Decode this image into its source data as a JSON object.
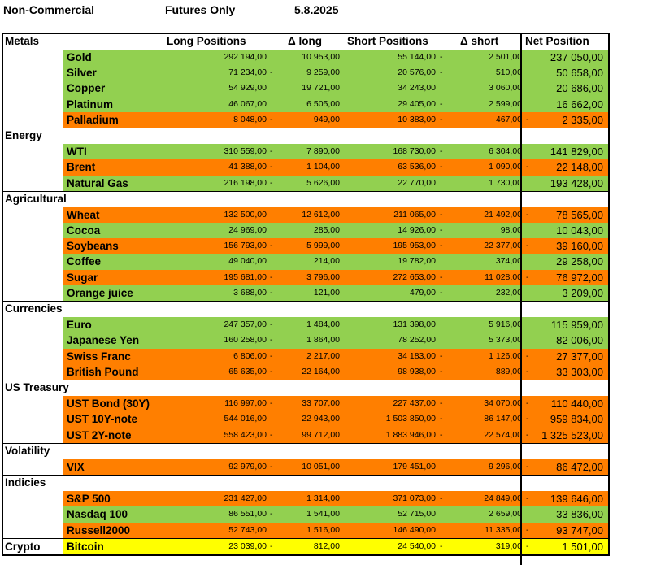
{
  "header": {
    "title": "Non-Commercial",
    "subtitle": "Futures Only",
    "date": "5.8.2025"
  },
  "columns": {
    "long": "Long Positions",
    "dlong": "Δ long",
    "short": "Short Positions",
    "dshort": "Δ short",
    "net": "Net Position"
  },
  "sections": [
    {
      "name": "Metals",
      "rows": [
        {
          "name": "Gold",
          "color": "#92d050",
          "long": "292 194,00",
          "dlong": "10 953,00",
          "dlong_neg": "",
          "short": "55 144,00",
          "dshort": "2 501,00",
          "dshort_neg": "-",
          "net": "237 050,00",
          "net_neg": ""
        },
        {
          "name": "Silver",
          "color": "#92d050",
          "long": "71 234,00",
          "dlong": "9 259,00",
          "dlong_neg": "-",
          "short": "20 576,00",
          "dshort": "510,00",
          "dshort_neg": "-",
          "net": "50 658,00",
          "net_neg": ""
        },
        {
          "name": "Copper",
          "color": "#92d050",
          "long": "54 929,00",
          "dlong": "19 721,00",
          "dlong_neg": "",
          "short": "34 243,00",
          "dshort": "3 060,00",
          "dshort_neg": "",
          "net": "20 686,00",
          "net_neg": ""
        },
        {
          "name": "Platinum",
          "color": "#92d050",
          "long": "46 067,00",
          "dlong": "6 505,00",
          "dlong_neg": "",
          "short": "29 405,00",
          "dshort": "2 599,00",
          "dshort_neg": "-",
          "net": "16 662,00",
          "net_neg": ""
        },
        {
          "name": "Palladium",
          "color": "#ff7f00",
          "long": "8 048,00",
          "dlong": "949,00",
          "dlong_neg": "-",
          "short": "10 383,00",
          "dshort": "467,00",
          "dshort_neg": "-",
          "net": "2 335,00",
          "net_neg": "-"
        }
      ]
    },
    {
      "name": "Energy",
      "rows": [
        {
          "name": "WTI",
          "color": "#92d050",
          "long": "310 559,00",
          "dlong": "7 890,00",
          "dlong_neg": "-",
          "short": "168 730,00",
          "dshort": "6 304,00",
          "dshort_neg": "-",
          "net": "141 829,00",
          "net_neg": ""
        },
        {
          "name": "Brent",
          "color": "#ff7f00",
          "long": "41 388,00",
          "dlong": "1 104,00",
          "dlong_neg": "-",
          "short": "63 536,00",
          "dshort": "1 090,00",
          "dshort_neg": "-",
          "net": "22 148,00",
          "net_neg": "-"
        },
        {
          "name": "Natural Gas",
          "color": "#92d050",
          "long": "216 198,00",
          "dlong": "5 626,00",
          "dlong_neg": "-",
          "short": "22 770,00",
          "dshort": "1 730,00",
          "dshort_neg": "",
          "net": "193 428,00",
          "net_neg": ""
        }
      ]
    },
    {
      "name": "Agricultural",
      "rows": [
        {
          "name": "Wheat",
          "color": "#ff7f00",
          "long": "132 500,00",
          "dlong": "12 612,00",
          "dlong_neg": "",
          "short": "211 065,00",
          "dshort": "21 492,00",
          "dshort_neg": "-",
          "net": "78 565,00",
          "net_neg": "-"
        },
        {
          "name": "Cocoa",
          "color": "#92d050",
          "long": "24 969,00",
          "dlong": "285,00",
          "dlong_neg": "",
          "short": "14 926,00",
          "dshort": "98,00",
          "dshort_neg": "-",
          "net": "10 043,00",
          "net_neg": ""
        },
        {
          "name": "Soybeans",
          "color": "#ff7f00",
          "long": "156 793,00",
          "dlong": "5 999,00",
          "dlong_neg": "-",
          "short": "195 953,00",
          "dshort": "22 377,00",
          "dshort_neg": "-",
          "net": "39 160,00",
          "net_neg": "-"
        },
        {
          "name": "Coffee",
          "color": "#92d050",
          "long": "49 040,00",
          "dlong": "214,00",
          "dlong_neg": "",
          "short": "19 782,00",
          "dshort": "374,00",
          "dshort_neg": "",
          "net": "29 258,00",
          "net_neg": ""
        },
        {
          "name": "Sugar",
          "color": "#ff7f00",
          "long": "195 681,00",
          "dlong": "3 796,00",
          "dlong_neg": "-",
          "short": "272 653,00",
          "dshort": "11 028,00",
          "dshort_neg": "-",
          "net": "76 972,00",
          "net_neg": "-"
        },
        {
          "name": "Orange juice",
          "color": "#92d050",
          "long": "3 688,00",
          "dlong": "121,00",
          "dlong_neg": "-",
          "short": "479,00",
          "dshort": "232,00",
          "dshort_neg": "-",
          "net": "3 209,00",
          "net_neg": ""
        }
      ]
    },
    {
      "name": "Currencies",
      "rows": [
        {
          "name": "Euro",
          "color": "#92d050",
          "long": "247 357,00",
          "dlong": "1 484,00",
          "dlong_neg": "-",
          "short": "131 398,00",
          "dshort": "5 916,00",
          "dshort_neg": "",
          "net": "115 959,00",
          "net_neg": ""
        },
        {
          "name": "Japanese Yen",
          "color": "#92d050",
          "long": "160 258,00",
          "dlong": "1 864,00",
          "dlong_neg": "-",
          "short": "78 252,00",
          "dshort": "5 373,00",
          "dshort_neg": "",
          "net": "82 006,00",
          "net_neg": ""
        },
        {
          "name": "Swiss Franc",
          "color": "#ff7f00",
          "long": "6 806,00",
          "dlong": "2 217,00",
          "dlong_neg": "-",
          "short": "34 183,00",
          "dshort": "1 126,00",
          "dshort_neg": "-",
          "net": "27 377,00",
          "net_neg": "-"
        },
        {
          "name": "British Pound",
          "color": "#ff7f00",
          "long": "65 635,00",
          "dlong": "22 164,00",
          "dlong_neg": "-",
          "short": "98 938,00",
          "dshort": "889,00",
          "dshort_neg": "-",
          "net": "33 303,00",
          "net_neg": "-"
        }
      ]
    },
    {
      "name": "US Treasury",
      "rows": [
        {
          "name": "UST Bond (30Y)",
          "color": "#ff7f00",
          "long": "116 997,00",
          "dlong": "33 707,00",
          "dlong_neg": "-",
          "short": "227 437,00",
          "dshort": "34 070,00",
          "dshort_neg": "-",
          "net": "110 440,00",
          "net_neg": "-"
        },
        {
          "name": "UST 10Y-note",
          "color": "#ff7f00",
          "long": "544 016,00",
          "dlong": "22 943,00",
          "dlong_neg": "",
          "short": "1 503 850,00",
          "dshort": "86 147,00",
          "dshort_neg": "-",
          "net": "959 834,00",
          "net_neg": "-"
        },
        {
          "name": "UST 2Y-note",
          "color": "#ff7f00",
          "long": "558 423,00",
          "dlong": "99 712,00",
          "dlong_neg": "-",
          "short": "1 883 946,00",
          "dshort": "22 574,00",
          "dshort_neg": "-",
          "net": "1 325 523,00",
          "net_neg": "-"
        }
      ]
    },
    {
      "name": "Volatility",
      "rows": [
        {
          "name": "VIX",
          "color": "#ff7f00",
          "long": "92 979,00",
          "dlong": "10 051,00",
          "dlong_neg": "-",
          "short": "179 451,00",
          "dshort": "9 296,00",
          "dshort_neg": "",
          "net": "86 472,00",
          "net_neg": "-"
        }
      ]
    },
    {
      "name": "Indicies",
      "rows": [
        {
          "name": "S&P 500",
          "color": "#ff7f00",
          "long": "231 427,00",
          "dlong": "1 314,00",
          "dlong_neg": "",
          "short": "371 073,00",
          "dshort": "24 849,00",
          "dshort_neg": "-",
          "net": "139 646,00",
          "net_neg": "-"
        },
        {
          "name": "Nasdaq 100",
          "color": "#92d050",
          "long": "86 551,00",
          "dlong": "1 541,00",
          "dlong_neg": "-",
          "short": "52 715,00",
          "dshort": "2 659,00",
          "dshort_neg": "",
          "net": "33 836,00",
          "net_neg": ""
        },
        {
          "name": "Russell2000",
          "color": "#ff7f00",
          "long": "52 743,00",
          "dlong": "1 516,00",
          "dlong_neg": "",
          "short": "146 490,00",
          "dshort": "11 335,00",
          "dshort_neg": "",
          "net": "93 747,00",
          "net_neg": "-"
        }
      ]
    },
    {
      "name": "Crypto",
      "inline": true,
      "rows": [
        {
          "name": "Bitcoin",
          "color": "#ffff00",
          "long": "23 039,00",
          "dlong": "812,00",
          "dlong_neg": "-",
          "short": "24 540,00",
          "dshort": "319,00",
          "dshort_neg": "-",
          "net": "1 501,00",
          "net_neg": "-"
        }
      ]
    }
  ]
}
